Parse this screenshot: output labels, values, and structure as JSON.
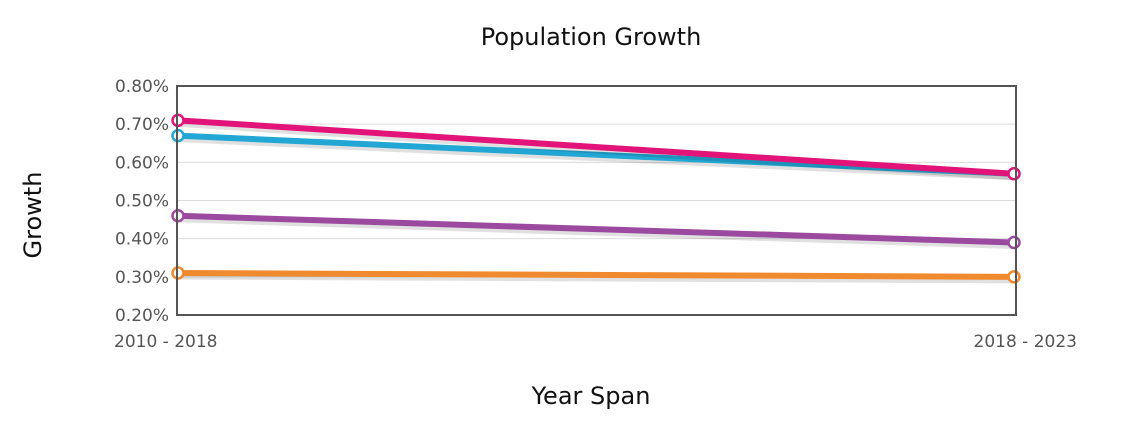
{
  "chart_data": {
    "type": "line",
    "title": "Population Growth",
    "xlabel": "Year Span",
    "ylabel": "Growth",
    "categories": [
      "2010 - 2018",
      "2018 - 2023"
    ],
    "ylim": [
      0.2,
      0.8
    ],
    "yticks": [
      0.2,
      0.3,
      0.4,
      0.5,
      0.6,
      0.7,
      0.8
    ],
    "ytick_labels": [
      "0.20%",
      "0.30%",
      "0.40%",
      "0.50%",
      "0.60%",
      "0.70%",
      "0.80%"
    ],
    "grid": true,
    "legend": "none",
    "series": [
      {
        "values": [
          0.31,
          0.3
        ],
        "color": "#ef8a2e"
      },
      {
        "values": [
          0.46,
          0.39
        ],
        "color": "#9b4aa0"
      },
      {
        "values": [
          0.67,
          0.57
        ],
        "color": "#22a6d3"
      },
      {
        "values": [
          0.71,
          0.57
        ],
        "color": "#e2147a"
      }
    ]
  }
}
